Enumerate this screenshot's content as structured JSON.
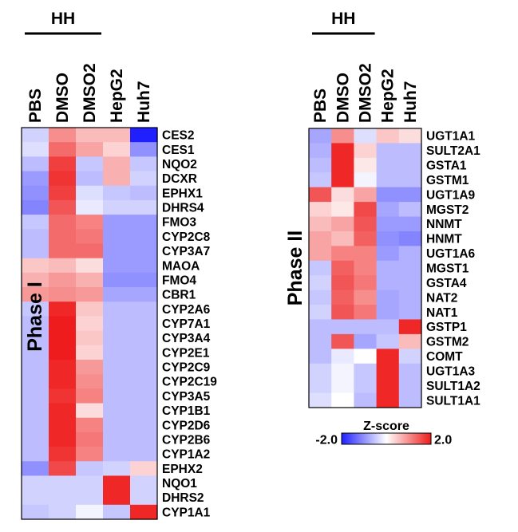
{
  "colors": {
    "low": "#2020ff",
    "mid": "#ffffff",
    "high": "#ee1c1c"
  },
  "chart_data": [
    {
      "type": "heatmap",
      "group_label": "HH",
      "group_columns": [
        "PBS",
        "DMSO",
        "DMSO2"
      ],
      "title": "Phase I",
      "columns": [
        "PBS",
        "DMSO",
        "DMSO2",
        "HepG2",
        "Huh7"
      ],
      "rows": [
        "CES2",
        "CES1",
        "NQO2",
        "DCXR",
        "EPHX1",
        "DHRS4",
        "FMO3",
        "CYP2C8",
        "CYP3A7",
        "MAOA",
        "FMO4",
        "CBR1",
        "CYP2A6",
        "CYP7A1",
        "CYP3A4",
        "CYP2E1",
        "CYP2C9",
        "CYP2C19",
        "CYP3A5",
        "CYP1B1",
        "CYP2D6",
        "CYP2B6",
        "CYP1A2",
        "EPHX2",
        "NQO1",
        "DHRS2",
        "CYP1A1"
      ],
      "values": [
        [
          -0.4,
          1.0,
          0.6,
          0.6,
          -2.0
        ],
        [
          -0.3,
          1.3,
          0.8,
          0.4,
          -1.0
        ],
        [
          -0.6,
          1.7,
          -0.5,
          0.7,
          -0.5
        ],
        [
          -0.9,
          1.8,
          -0.6,
          0.7,
          -0.4
        ],
        [
          -1.0,
          1.7,
          -0.3,
          -0.5,
          -0.6
        ],
        [
          -1.1,
          1.5,
          -0.2,
          -0.4,
          -0.4
        ],
        [
          -0.5,
          1.3,
          1.1,
          -0.9,
          -0.9
        ],
        [
          -0.6,
          1.3,
          1.2,
          -0.9,
          -0.9
        ],
        [
          -0.6,
          1.3,
          1.3,
          -0.9,
          -0.9
        ],
        [
          0.5,
          0.6,
          0.3,
          -0.9,
          -0.9
        ],
        [
          0.7,
          0.9,
          0.7,
          -1.0,
          -1.0
        ],
        [
          0.9,
          1.0,
          0.9,
          -0.8,
          -0.8
        ],
        [
          -0.5,
          1.9,
          0.5,
          -0.6,
          -0.6
        ],
        [
          -0.6,
          2.0,
          0.4,
          -0.6,
          -0.6
        ],
        [
          -0.6,
          2.0,
          0.5,
          -0.6,
          -0.6
        ],
        [
          -0.6,
          2.0,
          0.4,
          -0.6,
          -0.6
        ],
        [
          -0.6,
          1.9,
          0.9,
          -0.6,
          -0.6
        ],
        [
          -0.6,
          1.9,
          1.0,
          -0.6,
          -0.6
        ],
        [
          -0.6,
          1.8,
          1.1,
          -0.6,
          -0.6
        ],
        [
          -0.6,
          1.9,
          0.3,
          -0.6,
          -0.6
        ],
        [
          -0.6,
          1.9,
          1.1,
          -0.6,
          -0.6
        ],
        [
          -0.6,
          1.9,
          1.2,
          -0.6,
          -0.6
        ],
        [
          -0.6,
          1.8,
          1.1,
          -0.6,
          -0.6
        ],
        [
          -1.0,
          1.6,
          -0.5,
          -0.4,
          0.4
        ],
        [
          -0.4,
          -0.4,
          -0.4,
          1.9,
          -0.4
        ],
        [
          -0.4,
          -0.4,
          -0.4,
          1.9,
          -0.4
        ],
        [
          -0.5,
          -0.4,
          -0.1,
          -0.5,
          1.9
        ]
      ],
      "scale": [
        -2.0,
        2.0
      ]
    },
    {
      "type": "heatmap",
      "group_label": "HH",
      "group_columns": [
        "PBS",
        "DMSO",
        "DMSO2"
      ],
      "title": "Phase II",
      "columns": [
        "PBS",
        "DMSO",
        "DMSO2",
        "HepG2",
        "Huh7"
      ],
      "rows": [
        "UGT1A1",
        "SULT2A1",
        "GSTA1",
        "GSTM1",
        "UGT1A9",
        "MGST2",
        "NNMT",
        "HNMT",
        "UGT1A6",
        "MGST1",
        "GSTA4",
        "NAT2",
        "NAT1",
        "GSTP1",
        "GSTM2",
        "COMT",
        "UGT1A3",
        "SULT1A2",
        "SULT1A1"
      ],
      "values": [
        [
          -0.8,
          1.0,
          -0.3,
          0.5,
          0.3
        ],
        [
          -0.7,
          1.9,
          0.4,
          -0.6,
          -0.6
        ],
        [
          -0.6,
          1.9,
          0.2,
          -0.6,
          -0.6
        ],
        [
          -0.5,
          1.9,
          -0.1,
          -0.6,
          -0.6
        ],
        [
          1.5,
          0.3,
          0.8,
          -1.0,
          -1.0
        ],
        [
          0.4,
          0.2,
          1.6,
          -0.8,
          -0.6
        ],
        [
          0.6,
          0.8,
          1.5,
          -0.9,
          -0.9
        ],
        [
          0.8,
          0.6,
          1.4,
          -1.0,
          -1.1
        ],
        [
          0.8,
          1.1,
          1.1,
          -0.9,
          -0.7
        ],
        [
          -0.5,
          1.4,
          1.1,
          -0.7,
          -0.7
        ],
        [
          -0.4,
          1.5,
          1.2,
          -0.7,
          -0.7
        ],
        [
          -0.5,
          1.4,
          1.0,
          -0.8,
          -0.7
        ],
        [
          -0.4,
          1.5,
          1.2,
          -0.8,
          -0.7
        ],
        [
          -0.6,
          -0.6,
          -0.6,
          -0.6,
          1.9
        ],
        [
          -0.6,
          1.5,
          -0.8,
          -0.5,
          0.6
        ],
        [
          -0.6,
          -0.2,
          0.0,
          1.9,
          -0.4
        ],
        [
          -0.4,
          -0.1,
          -0.5,
          1.9,
          -0.6
        ],
        [
          -0.4,
          -0.1,
          -0.5,
          1.9,
          -0.6
        ],
        [
          -0.3,
          0.0,
          -0.6,
          1.9,
          -0.6
        ]
      ],
      "scale": [
        -2.0,
        2.0
      ]
    }
  ],
  "legend": {
    "title": "Z-score",
    "min_label": "-2.0",
    "max_label": "2.0"
  }
}
